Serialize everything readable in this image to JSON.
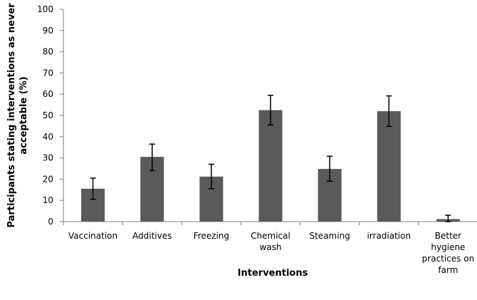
{
  "chart_data": {
    "type": "bar",
    "xlabel": "Interventions",
    "ylabel_lines": [
      "Participants stating interventions as never",
      "acceptable (%)"
    ],
    "ylim": [
      0,
      100
    ],
    "yticks": [
      0,
      10,
      20,
      30,
      40,
      50,
      60,
      70,
      80,
      90,
      100
    ],
    "grid": false,
    "categories": [
      [
        "Vaccination"
      ],
      [
        "Additives"
      ],
      [
        "Freezing"
      ],
      [
        "Chemical",
        "wash"
      ],
      [
        "Steaming"
      ],
      [
        "irradiation"
      ],
      [
        "Better",
        "hygiene",
        "practices on",
        "farm"
      ]
    ],
    "values": [
      15.5,
      30.5,
      21.2,
      52.5,
      24.8,
      52.0,
      1.2
    ],
    "error_low": [
      10.5,
      24.0,
      15.5,
      45.5,
      19.0,
      44.8,
      0.0
    ],
    "error_high": [
      20.5,
      36.5,
      27.0,
      59.5,
      30.8,
      59.2,
      3.0
    ],
    "colors": {
      "bar": "#5a5a5a",
      "axis": "#808080",
      "error": "#000000"
    }
  }
}
